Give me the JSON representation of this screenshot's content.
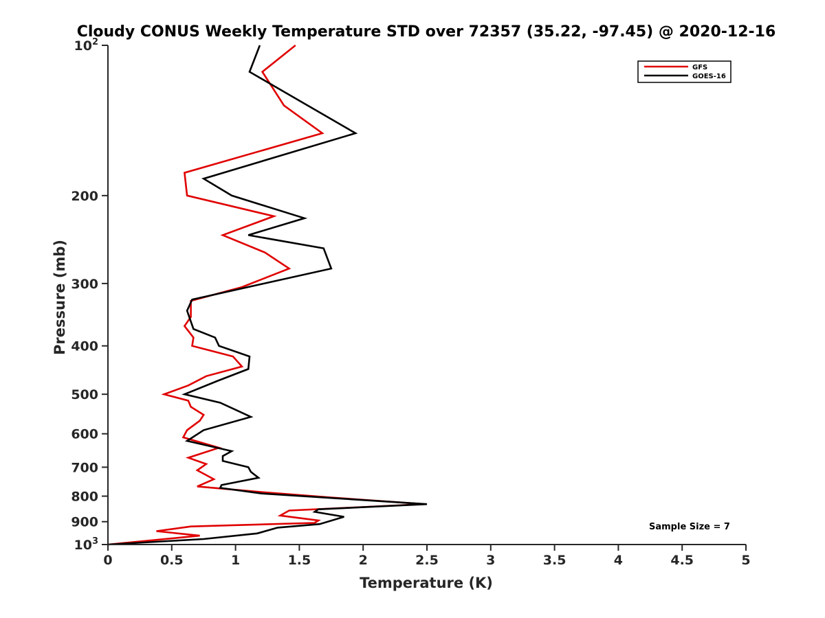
{
  "chart_data": {
    "type": "line",
    "title": "Cloudy CONUS Weekly Temperature STD over 72357 (35.22, -97.45) @ 2020-12-16",
    "xlabel": "Temperature (K)",
    "ylabel": "Pressure (mb)",
    "xlim": [
      0,
      5
    ],
    "ylim": [
      1000,
      100
    ],
    "yscale": "log",
    "y_reversed": true,
    "x_ticks": [
      "0",
      "0.5",
      "1",
      "1.5",
      "2",
      "2.5",
      "3",
      "3.5",
      "4",
      "4.5",
      "5"
    ],
    "y_ticks": [
      {
        "value": 100,
        "base": "10",
        "exp": "2"
      },
      {
        "value": 200,
        "label": "200"
      },
      {
        "value": 300,
        "label": "300"
      },
      {
        "value": 400,
        "label": "400"
      },
      {
        "value": 500,
        "label": "500"
      },
      {
        "value": 600,
        "label": "600"
      },
      {
        "value": 700,
        "label": "700"
      },
      {
        "value": 800,
        "label": "800"
      },
      {
        "value": 900,
        "label": "900"
      },
      {
        "value": 1000,
        "base": "10",
        "exp": "3"
      }
    ],
    "grid": false,
    "legend": "top-right",
    "annotation": "Sample Size = 7",
    "series": [
      {
        "name": "GFS",
        "color": "#e00000",
        "x": [
          1.47,
          1.21,
          1.38,
          1.68,
          0.6,
          0.62,
          1.3,
          0.9,
          1.23,
          1.42,
          1.05,
          0.65,
          0.65,
          0.6,
          0.67,
          0.66,
          0.98,
          1.05,
          0.77,
          0.63,
          0.44,
          0.63,
          0.65,
          0.75,
          0.72,
          0.62,
          0.59,
          0.87,
          0.63,
          0.77,
          0.7,
          0.83,
          0.7,
          1.2,
          1.75,
          2.48,
          1.42,
          1.35,
          1.65,
          1.62,
          0.65,
          0.38,
          0.72,
          0.0
        ],
        "y": [
          100,
          113,
          132,
          150,
          180,
          200,
          220,
          240,
          260,
          280,
          305,
          325,
          350,
          365,
          385,
          400,
          420,
          440,
          460,
          480,
          500,
          515,
          530,
          550,
          565,
          590,
          610,
          640,
          670,
          690,
          710,
          740,
          765,
          785,
          805,
          830,
          855,
          875,
          895,
          905,
          920,
          940,
          960,
          1000
        ]
      },
      {
        "name": "GOES-16",
        "color": "#000000",
        "x": [
          1.19,
          1.11,
          1.94,
          0.75,
          0.97,
          1.54,
          1.1,
          1.69,
          1.75,
          0.66,
          0.62,
          0.67,
          0.84,
          0.87,
          1.11,
          1.1,
          0.86,
          0.6,
          0.88,
          1.12,
          0.75,
          0.62,
          0.97,
          0.9,
          0.9,
          1.1,
          1.12,
          1.18,
          0.89,
          0.88,
          1.2,
          2.5,
          1.65,
          1.62,
          1.85,
          1.66,
          1.33,
          1.17,
          0.75,
          0.0
        ],
        "y": [
          100,
          113,
          150,
          185,
          200,
          222,
          240,
          255,
          280,
          323,
          340,
          370,
          385,
          400,
          420,
          445,
          470,
          500,
          520,
          555,
          590,
          620,
          650,
          665,
          680,
          700,
          715,
          735,
          760,
          770,
          790,
          830,
          850,
          860,
          880,
          910,
          925,
          950,
          975,
          1000
        ]
      }
    ]
  }
}
